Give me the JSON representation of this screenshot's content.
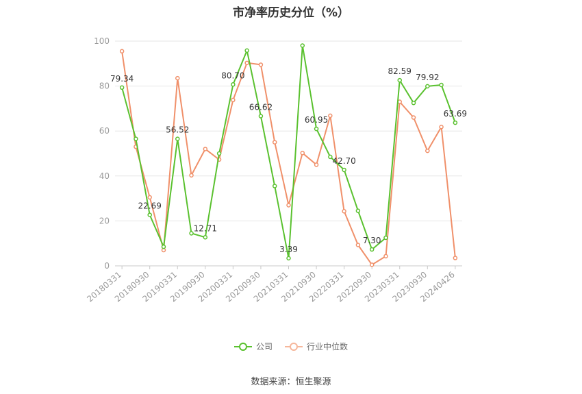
{
  "chart_data": {
    "type": "line",
    "title": "市净率历史分位（%）",
    "source": "数据来源：恒生聚源",
    "ylim": [
      0,
      100
    ],
    "yticks": [
      "0",
      "20",
      "40",
      "60",
      "80",
      "100"
    ],
    "xtick_labels": [
      "20180331",
      "20180930",
      "20190331",
      "20190930",
      "20200331",
      "20200930",
      "20210331",
      "20210930",
      "20220331",
      "20220930",
      "20230331",
      "20230930",
      "20240426"
    ],
    "x": [
      "20180331",
      "20180630",
      "20180930",
      "20181231",
      "20190331",
      "20190630",
      "20190930",
      "20191231",
      "20200331",
      "20200630",
      "20200930",
      "20201231",
      "20210331",
      "20210630",
      "20210930",
      "20211231",
      "20220331",
      "20220630",
      "20220930",
      "20221231",
      "20230331",
      "20230630",
      "20230930",
      "20231231",
      "20240426"
    ],
    "grid": true,
    "legend_position": "bottom",
    "series": [
      {
        "name": "公司",
        "color": "#5ac12f",
        "values": [
          79.34,
          56.5,
          22.69,
          8.5,
          56.52,
          14.5,
          12.71,
          50.0,
          80.7,
          95.8,
          66.62,
          35.5,
          3.39,
          98.0,
          60.95,
          48.5,
          42.7,
          24.5,
          7.3,
          12.5,
          82.59,
          72.5,
          79.92,
          80.5,
          63.69
        ],
        "labels": [
          "79.34",
          "",
          "22.69",
          "",
          "56.52",
          "",
          "12.71",
          "",
          "80.70",
          "",
          "66.62",
          "",
          "3.39",
          "",
          "60.95",
          "",
          "42.70",
          "",
          "7.30",
          "",
          "82.59",
          "",
          "79.92",
          "",
          "63.69"
        ]
      },
      {
        "name": "行业中位数",
        "color": "#f0906a",
        "values": [
          95.5,
          53.0,
          30.5,
          7.0,
          83.5,
          40.3,
          52.0,
          47.3,
          73.8,
          90.3,
          89.5,
          55.0,
          27.0,
          50.2,
          45.0,
          66.8,
          24.3,
          9.3,
          0.5,
          4.3,
          73.0,
          66.0,
          51.2,
          61.8,
          3.5
        ],
        "labels": []
      }
    ]
  }
}
